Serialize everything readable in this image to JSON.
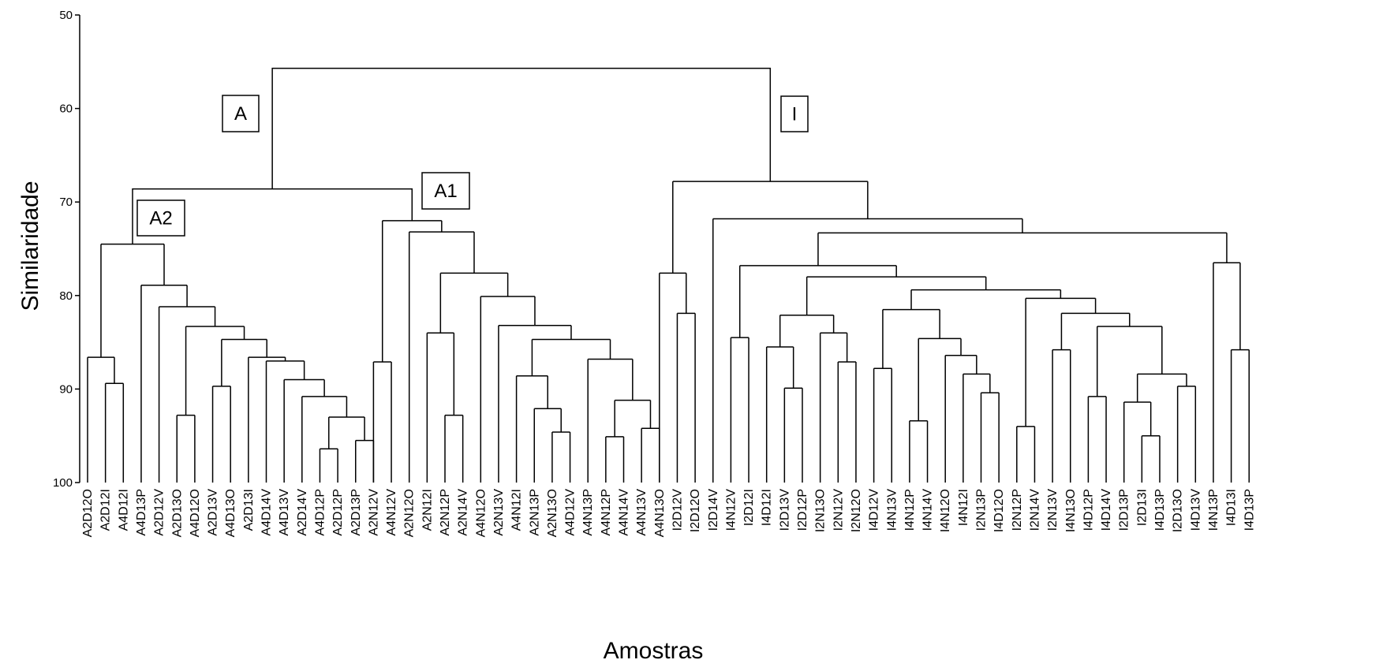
{
  "chart_data": {
    "type": "dendrogram",
    "title": "",
    "xlabel": "Amostras",
    "ylabel": "Similaridade",
    "ylim": [
      50,
      100
    ],
    "y_reversed": true,
    "yticks": [
      50,
      60,
      70,
      80,
      90,
      100
    ],
    "leaves": [
      "A2D12O",
      "A2D12I",
      "A4D12I",
      "A4D13P",
      "A2D12V",
      "A2D13O",
      "A4D12O",
      "A2D13V",
      "A4D13O",
      "A2D13I",
      "A4D14V",
      "A4D13V",
      "A2D14V",
      "A4D12P",
      "A2D12P",
      "A2D13P",
      "A2N12V",
      "A4N12V",
      "A2N12O",
      "A2N12I",
      "A2N12P",
      "A2N14V",
      "A4N12O",
      "A2N13V",
      "A4N12I",
      "A2N13P",
      "A2N13O",
      "A4D12V",
      "A4N13P",
      "A4N12P",
      "A4N14V",
      "A4N13V",
      "A4N13O",
      "I2D12V",
      "I2D12O",
      "I2D14V",
      "I4N12V",
      "I2D12I",
      "I4D12I",
      "I2D13V",
      "I2D12P",
      "I2N13O",
      "I2N12V",
      "I2N12O",
      "I4D12V",
      "I4N13V",
      "I4N12P",
      "I4N14V",
      "I4N12O",
      "I4N12I",
      "I2N13P",
      "I4D12O",
      "I2N12P",
      "I2N14V",
      "I2N13V",
      "I4N13O",
      "I4D12P",
      "I4D14V",
      "I2D13P",
      "I2D13I",
      "I4D13P",
      "I2D13O",
      "I4D13V",
      "I4N13P",
      "I4D13I",
      "I4D13P"
    ],
    "merges": [
      [
        0,
        1,
        86.6
      ],
      [
        1,
        2,
        89.4
      ],
      [
        3,
        4,
        78.9
      ],
      [
        4,
        5,
        81.2
      ],
      [
        5,
        6,
        83.3
      ],
      [
        6,
        7,
        92.8
      ],
      [
        7,
        8,
        84.7
      ],
      [
        8,
        9,
        89.7
      ],
      [
        9,
        10,
        86.6
      ],
      [
        10,
        11,
        87.0
      ],
      [
        11,
        12,
        89.0
      ],
      [
        12,
        13,
        90.8
      ],
      [
        13,
        14,
        93.0
      ],
      [
        14,
        15,
        96.4
      ],
      [
        15,
        16,
        95.5
      ],
      [
        16,
        17,
        87.1
      ],
      [
        17,
        18,
        72.0
      ],
      [
        18,
        19,
        73.2
      ],
      [
        19,
        20,
        84.0
      ],
      [
        20,
        21,
        92.8
      ],
      [
        21,
        22,
        77.6
      ],
      [
        22,
        23,
        80.1
      ],
      [
        23,
        24,
        83.2
      ],
      [
        24,
        25,
        84.7
      ],
      [
        25,
        26,
        88.6
      ],
      [
        26,
        27,
        92.1
      ],
      [
        27,
        28,
        94.6
      ],
      [
        28,
        29,
        86.8
      ],
      [
        29,
        30,
        95.1
      ],
      [
        30,
        31,
        91.2
      ],
      [
        31,
        32,
        94.2
      ],
      [
        33,
        34,
        77.6
      ],
      [
        34,
        35,
        81.9
      ],
      [
        36,
        37,
        71.8
      ],
      [
        37,
        38,
        76.8
      ],
      [
        38,
        39,
        84.5
      ],
      [
        39,
        40,
        78.0
      ],
      [
        40,
        41,
        85.5
      ],
      [
        41,
        42,
        89.9
      ],
      [
        42,
        43,
        82.1
      ],
      [
        43,
        44,
        87.1
      ],
      [
        44,
        45,
        79.4
      ],
      [
        45,
        46,
        81.5
      ],
      [
        46,
        47,
        87.8
      ],
      [
        47,
        48,
        84.6
      ],
      [
        48,
        49,
        86.4
      ],
      [
        49,
        50,
        93.4
      ],
      [
        50,
        51,
        88.4
      ],
      [
        51,
        52,
        90.4
      ],
      [
        52,
        53,
        80.3
      ],
      [
        53,
        54,
        94.0
      ],
      [
        54,
        55,
        81.9
      ],
      [
        55,
        56,
        85.8
      ],
      [
        56,
        57,
        83.3
      ],
      [
        57,
        58,
        90.8
      ],
      [
        58,
        59,
        88.4
      ],
      [
        59,
        60,
        91.4
      ],
      [
        60,
        61,
        95.0
      ],
      [
        61,
        62,
        89.7
      ],
      [
        62,
        63,
        73.3
      ],
      [
        63,
        64,
        76.5
      ],
      [
        64,
        65,
        85.8
      ]
    ],
    "clusters": [
      {
        "label": "A",
        "similarity": 68.6
      },
      {
        "label": "A1",
        "similarity": 72.0
      },
      {
        "label": "A2",
        "similarity": 74.5
      },
      {
        "label": "I",
        "similarity": 67.8
      }
    ],
    "root_similarity": 55.7
  }
}
